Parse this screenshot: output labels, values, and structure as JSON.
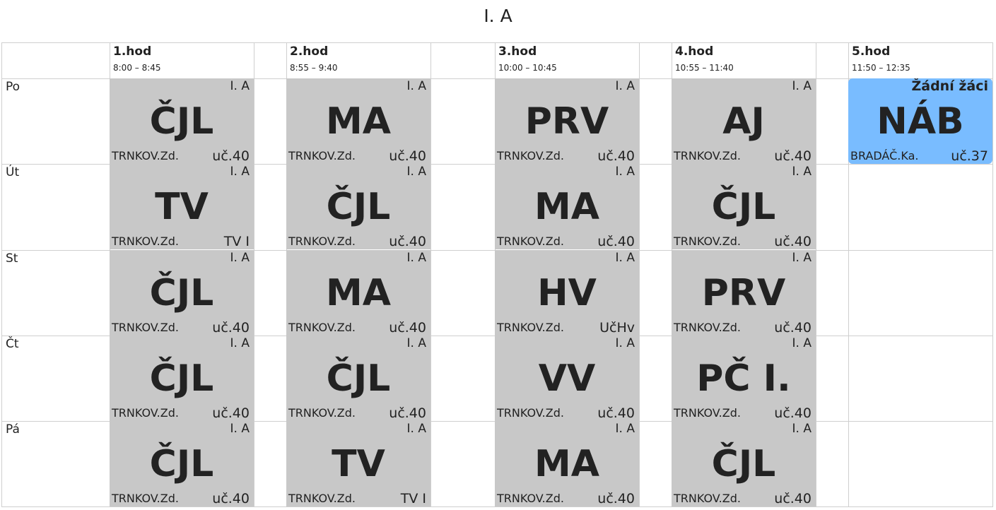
{
  "title": "I. A",
  "periods": [
    {
      "num": "1.hod",
      "time": "8:00 – 8:45"
    },
    {
      "num": "2.hod",
      "time": "8:55 – 9:40"
    },
    {
      "num": "3.hod",
      "time": "10:00 – 10:45"
    },
    {
      "num": "4.hod",
      "time": "10:55 – 11:40"
    },
    {
      "num": "5.hod",
      "time": "11:50 – 12:35"
    }
  ],
  "days": [
    "Po",
    "Út",
    "St",
    "Čt",
    "Pá"
  ],
  "lessons": [
    [
      {
        "cls": "I. A",
        "subject": "ČJL",
        "teacher": "TRNKOV.Zd.",
        "room": "uč.40"
      },
      {
        "cls": "I. A",
        "subject": "MA",
        "teacher": "TRNKOV.Zd.",
        "room": "uč.40"
      },
      {
        "cls": "I. A",
        "subject": "PRV",
        "teacher": "TRNKOV.Zd.",
        "room": "uč.40"
      },
      {
        "cls": "I. A",
        "subject": "AJ",
        "teacher": "TRNKOV.Zd.",
        "room": "uč.40"
      },
      {
        "cls": "Žádní žáci",
        "subject": "NÁB",
        "teacher": "BRADÁČ.Ka.",
        "room": "uč.37",
        "highlight": true
      }
    ],
    [
      {
        "cls": "I. A",
        "subject": "TV",
        "teacher": "TRNKOV.Zd.",
        "room": "TV I"
      },
      {
        "cls": "I. A",
        "subject": "ČJL",
        "teacher": "TRNKOV.Zd.",
        "room": "uč.40"
      },
      {
        "cls": "I. A",
        "subject": "MA",
        "teacher": "TRNKOV.Zd.",
        "room": "uč.40"
      },
      {
        "cls": "I. A",
        "subject": "ČJL",
        "teacher": "TRNKOV.Zd.",
        "room": "uč.40"
      }
    ],
    [
      {
        "cls": "I. A",
        "subject": "ČJL",
        "teacher": "TRNKOV.Zd.",
        "room": "uč.40"
      },
      {
        "cls": "I. A",
        "subject": "MA",
        "teacher": "TRNKOV.Zd.",
        "room": "uč.40"
      },
      {
        "cls": "I. A",
        "subject": "HV",
        "teacher": "TRNKOV.Zd.",
        "room": "UčHv"
      },
      {
        "cls": "I. A",
        "subject": "PRV",
        "teacher": "TRNKOV.Zd.",
        "room": "uč.40"
      }
    ],
    [
      {
        "cls": "I. A",
        "subject": "ČJL",
        "teacher": "TRNKOV.Zd.",
        "room": "uč.40"
      },
      {
        "cls": "I. A",
        "subject": "ČJL",
        "teacher": "TRNKOV.Zd.",
        "room": "uč.40"
      },
      {
        "cls": "I. A",
        "subject": "VV",
        "teacher": "TRNKOV.Zd.",
        "room": "uč.40"
      },
      {
        "cls": "I. A",
        "subject": "PČ I.",
        "teacher": "TRNKOV.Zd.",
        "room": "uč.40"
      }
    ],
    [
      {
        "cls": "I. A",
        "subject": "ČJL",
        "teacher": "TRNKOV.Zd.",
        "room": "uč.40"
      },
      {
        "cls": "I. A",
        "subject": "TV",
        "teacher": "TRNKOV.Zd.",
        "room": "TV I"
      },
      {
        "cls": "I. A",
        "subject": "MA",
        "teacher": "TRNKOV.Zd.",
        "room": "uč.40"
      },
      {
        "cls": "I. A",
        "subject": "ČJL",
        "teacher": "TRNKOV.Zd.",
        "room": "uč.40"
      }
    ]
  ],
  "colors": {
    "lesson": "#c8c8c8",
    "highlight": "#79bcff",
    "grid": "#cfcfcf"
  }
}
